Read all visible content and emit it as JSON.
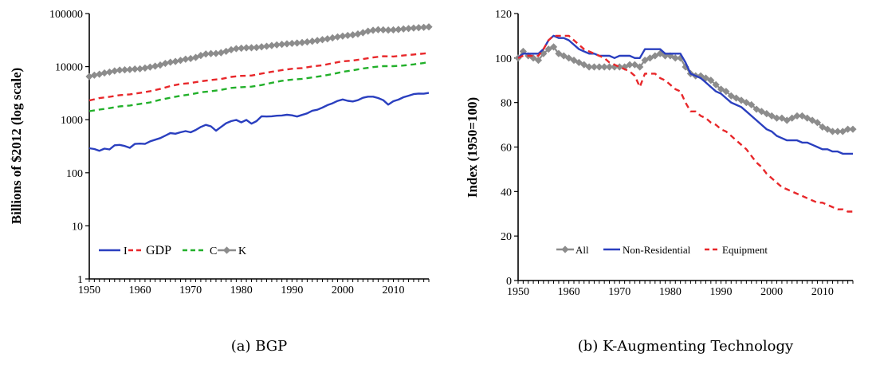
{
  "chart_data": [
    {
      "type": "line",
      "caption": "(a) BGP",
      "ylabel": "Billions of $2012 (log scale)",
      "xlabel": "",
      "log_y": true,
      "ylim": [
        1,
        100000
      ],
      "xlim": [
        1950,
        2017
      ],
      "x_ticks": [
        "1950",
        "1960",
        "1970",
        "1980",
        "1990",
        "2000",
        "2010"
      ],
      "y_ticks": [
        "1",
        "10",
        "100",
        "1000",
        "10000",
        "100000"
      ],
      "legend_position": "bottom-left",
      "series": [
        {
          "name": "I",
          "color": "#2a3fbf",
          "style": "solid",
          "marker": "none",
          "x": [
            1950,
            1951,
            1952,
            1953,
            1954,
            1955,
            1956,
            1957,
            1958,
            1959,
            1960,
            1961,
            1962,
            1963,
            1964,
            1965,
            1966,
            1967,
            1968,
            1969,
            1970,
            1971,
            1972,
            1973,
            1974,
            1975,
            1976,
            1977,
            1978,
            1979,
            1980,
            1981,
            1982,
            1983,
            1984,
            1985,
            1986,
            1987,
            1988,
            1989,
            1990,
            1991,
            1992,
            1993,
            1994,
            1995,
            1996,
            1997,
            1998,
            1999,
            2000,
            2001,
            2002,
            2003,
            2004,
            2005,
            2006,
            2007,
            2008,
            2009,
            2010,
            2011,
            2012,
            2013,
            2014,
            2015,
            2016,
            2017
          ],
          "values": [
            290,
            280,
            260,
            285,
            275,
            330,
            335,
            320,
            295,
            350,
            355,
            350,
            390,
            420,
            450,
            500,
            560,
            545,
            580,
            610,
            580,
            640,
            730,
            800,
            750,
            620,
            730,
            860,
            940,
            990,
            890,
            990,
            840,
            940,
            1160,
            1150,
            1160,
            1190,
            1200,
            1240,
            1210,
            1150,
            1230,
            1320,
            1480,
            1540,
            1690,
            1880,
            2040,
            2260,
            2410,
            2270,
            2210,
            2330,
            2590,
            2720,
            2720,
            2560,
            2330,
            1920,
            2230,
            2390,
            2650,
            2830,
            3030,
            3110,
            3090,
            3200
          ]
        },
        {
          "name": "GDP",
          "color": "#e8272a",
          "style": "dash",
          "marker": "none",
          "x": [
            1950,
            1952,
            1954,
            1956,
            1958,
            1960,
            1962,
            1964,
            1966,
            1968,
            1970,
            1972,
            1974,
            1976,
            1978,
            1980,
            1982,
            1984,
            1986,
            1988,
            1990,
            1992,
            1994,
            1996,
            1998,
            2000,
            2002,
            2004,
            2006,
            2008,
            2010,
            2012,
            2014,
            2016,
            2017
          ],
          "values": [
            2300,
            2550,
            2700,
            2900,
            3000,
            3200,
            3450,
            3800,
            4300,
            4700,
            4900,
            5300,
            5600,
            5850,
            6400,
            6700,
            6800,
            7400,
            8000,
            8600,
            9100,
            9400,
            10100,
            10600,
            11600,
            12600,
            13000,
            13900,
            14900,
            15700,
            15500,
            16200,
            16900,
            17600,
            18100
          ]
        },
        {
          "name": "C",
          "color": "#22b02a",
          "style": "dash",
          "marker": "none",
          "x": [
            1950,
            1952,
            1954,
            1956,
            1958,
            1960,
            1962,
            1964,
            1966,
            1968,
            1970,
            1972,
            1974,
            1976,
            1978,
            1980,
            1982,
            1984,
            1986,
            1988,
            1990,
            1992,
            1994,
            1996,
            1998,
            2000,
            2002,
            2004,
            2006,
            2008,
            2010,
            2012,
            2014,
            2016,
            2017
          ],
          "values": [
            1450,
            1550,
            1650,
            1780,
            1850,
            1980,
            2120,
            2370,
            2600,
            2820,
            3000,
            3290,
            3430,
            3640,
            3970,
            4100,
            4200,
            4500,
            4950,
            5400,
            5700,
            5900,
            6250,
            6700,
            7250,
            8000,
            8500,
            9200,
            9800,
            10200,
            10200,
            10500,
            11000,
            11700,
            12200
          ]
        },
        {
          "name": "K",
          "color": "#8c8c8c",
          "style": "solid",
          "marker": "diamond",
          "x": [
            1950,
            1951,
            1952,
            1953,
            1954,
            1955,
            1956,
            1957,
            1958,
            1959,
            1960,
            1961,
            1962,
            1963,
            1964,
            1965,
            1966,
            1967,
            1968,
            1969,
            1970,
            1971,
            1972,
            1973,
            1974,
            1975,
            1976,
            1977,
            1978,
            1979,
            1980,
            1981,
            1982,
            1983,
            1984,
            1985,
            1986,
            1987,
            1988,
            1989,
            1990,
            1991,
            1992,
            1993,
            1994,
            1995,
            1996,
            1997,
            1998,
            1999,
            2000,
            2001,
            2002,
            2003,
            2004,
            2005,
            2006,
            2007,
            2008,
            2009,
            2010,
            2011,
            2012,
            2013,
            2014,
            2015,
            2016,
            2017
          ],
          "values": [
            6500,
            6900,
            7200,
            7600,
            7900,
            8300,
            8600,
            8700,
            8800,
            9000,
            9100,
            9400,
            9800,
            10200,
            10700,
            11500,
            12100,
            12500,
            13100,
            13800,
            14200,
            14900,
            16200,
            17300,
            17600,
            17700,
            18300,
            19400,
            20800,
            21800,
            22200,
            22600,
            22700,
            22900,
            23600,
            24200,
            25000,
            25700,
            26300,
            26900,
            27400,
            27800,
            28400,
            29200,
            30100,
            31000,
            32200,
            33400,
            34800,
            36300,
            37600,
            38700,
            39700,
            41200,
            43600,
            46500,
            48400,
            49600,
            49300,
            48800,
            49200,
            50100,
            51300,
            52200,
            53300,
            54200,
            55000,
            56000
          ]
        }
      ]
    },
    {
      "type": "line",
      "caption": "(b) K-Augmenting Technology",
      "ylabel": "Index (1950=100)",
      "xlabel": "",
      "ylim": [
        0,
        120
      ],
      "xlim": [
        1950,
        2016
      ],
      "x_ticks": [
        "1950",
        "1960",
        "1970",
        "1980",
        "1990",
        "2000",
        "2010"
      ],
      "y_ticks": [
        "0",
        "20",
        "40",
        "60",
        "80",
        "100",
        "120"
      ],
      "legend_position": "bottom-left",
      "series": [
        {
          "name": "All",
          "color": "#8c8c8c",
          "style": "solid",
          "marker": "diamond",
          "x": [
            1950,
            1951,
            1952,
            1953,
            1954,
            1955,
            1956,
            1957,
            1958,
            1959,
            1960,
            1961,
            1962,
            1963,
            1964,
            1965,
            1966,
            1967,
            1968,
            1969,
            1970,
            1971,
            1972,
            1973,
            1974,
            1975,
            1976,
            1977,
            1978,
            1979,
            1980,
            1981,
            1982,
            1983,
            1984,
            1985,
            1986,
            1987,
            1988,
            1989,
            1990,
            1991,
            1992,
            1993,
            1994,
            1995,
            1996,
            1997,
            1998,
            1999,
            2000,
            2001,
            2002,
            2003,
            2004,
            2005,
            2006,
            2007,
            2008,
            2009,
            2010,
            2011,
            2012,
            2013,
            2014,
            2015,
            2016
          ],
          "values": [
            100,
            103,
            101,
            100,
            99,
            102,
            104,
            105,
            102,
            101,
            100,
            99,
            98,
            97,
            96,
            96,
            96,
            96,
            96,
            96,
            96,
            96,
            97,
            97,
            96,
            99,
            100,
            101,
            102,
            101,
            101,
            100,
            100,
            96,
            93,
            92,
            92,
            91,
            90,
            88,
            86,
            85,
            83,
            82,
            81,
            80,
            79,
            77,
            76,
            75,
            74,
            73,
            73,
            72,
            73,
            74,
            74,
            73,
            72,
            71,
            69,
            68,
            67,
            67,
            67,
            68,
            68
          ]
        },
        {
          "name": "Non-Residential",
          "color": "#2a3fbf",
          "style": "solid",
          "marker": "none",
          "x": [
            1950,
            1951,
            1952,
            1953,
            1954,
            1955,
            1956,
            1957,
            1958,
            1959,
            1960,
            1961,
            1962,
            1963,
            1964,
            1965,
            1966,
            1967,
            1968,
            1969,
            1970,
            1971,
            1972,
            1973,
            1974,
            1975,
            1976,
            1977,
            1978,
            1979,
            1980,
            1981,
            1982,
            1983,
            1984,
            1985,
            1986,
            1987,
            1988,
            1989,
            1990,
            1991,
            1992,
            1993,
            1994,
            1995,
            1996,
            1997,
            1998,
            1999,
            2000,
            2001,
            2002,
            2003,
            2004,
            2005,
            2006,
            2007,
            2008,
            2009,
            2010,
            2011,
            2012,
            2013,
            2014,
            2015,
            2016
          ],
          "values": [
            100,
            102,
            102,
            102,
            102,
            104,
            108,
            110,
            109,
            109,
            108,
            106,
            104,
            103,
            102,
            102,
            101,
            101,
            101,
            100,
            101,
            101,
            101,
            100,
            100,
            104,
            104,
            104,
            104,
            102,
            102,
            102,
            102,
            98,
            93,
            92,
            91,
            89,
            87,
            85,
            84,
            82,
            80,
            79,
            78,
            76,
            74,
            72,
            70,
            68,
            67,
            65,
            64,
            63,
            63,
            63,
            62,
            62,
            61,
            60,
            59,
            59,
            58,
            58,
            57,
            57,
            57
          ]
        },
        {
          "name": "Equipment",
          "color": "#e8272a",
          "style": "dash",
          "marker": "none",
          "x": [
            1950,
            1951,
            1952,
            1953,
            1954,
            1955,
            1956,
            1957,
            1958,
            1959,
            1960,
            1961,
            1962,
            1963,
            1964,
            1965,
            1966,
            1967,
            1968,
            1969,
            1970,
            1971,
            1972,
            1973,
            1974,
            1975,
            1976,
            1977,
            1978,
            1979,
            1980,
            1981,
            1982,
            1983,
            1984,
            1985,
            1986,
            1987,
            1988,
            1989,
            1990,
            1991,
            1992,
            1993,
            1994,
            1995,
            1996,
            1997,
            1998,
            1999,
            2000,
            2001,
            2002,
            2003,
            2004,
            2005,
            2006,
            2007,
            2008,
            2009,
            2010,
            2011,
            2012,
            2013,
            2014,
            2015,
            2016
          ],
          "values": [
            100,
            101,
            101,
            101,
            101,
            104,
            108,
            110,
            110,
            110,
            110,
            108,
            106,
            104,
            103,
            102,
            101,
            100,
            98,
            97,
            96,
            95,
            94,
            92,
            87,
            93,
            93,
            93,
            91,
            90,
            88,
            86,
            85,
            80,
            76,
            76,
            74,
            73,
            71,
            70,
            68,
            67,
            65,
            63,
            61,
            59,
            56,
            53,
            51,
            48,
            46,
            44,
            42,
            41,
            40,
            39,
            38,
            37,
            36,
            35,
            35,
            34,
            33,
            32,
            32,
            31,
            31
          ]
        }
      ]
    }
  ]
}
